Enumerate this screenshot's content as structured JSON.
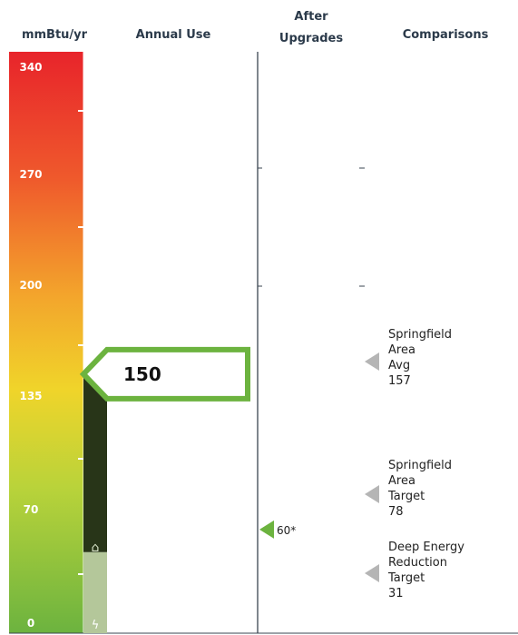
{
  "chart_data": {
    "type": "bar",
    "units": "mmBtu/yr",
    "headers": {
      "scale": "mmBtu/yr",
      "annual_use": "Annual Use",
      "after_upgrades_line1": "After",
      "after_upgrades_line2": "Upgrades",
      "comparisons": "Comparisons"
    },
    "ylim": [
      0,
      340
    ],
    "tick_labels": [
      "340",
      "270",
      "200",
      "135",
      "70",
      "0"
    ],
    "tick_values": [
      340,
      270,
      200,
      135,
      70,
      0
    ],
    "annual_use": {
      "value": 150,
      "label": "150",
      "color": "#6cb33f",
      "bar_color": "#283518"
    },
    "reduction_segment": {
      "value": 46,
      "color": "#b4c79a"
    },
    "after_upgrades": {
      "value": 60,
      "label": "60*",
      "color": "#6cb33f"
    },
    "comparisons": [
      {
        "lines": [
          "Springfield",
          "Area",
          "Avg",
          "157"
        ],
        "value": 157
      },
      {
        "lines": [
          "Springfield",
          "Area",
          "Target",
          "78"
        ],
        "value": 78
      },
      {
        "lines": [
          "Deep Energy",
          "Reduction",
          "Target",
          "31"
        ],
        "value": 31
      }
    ],
    "scale_gradient": [
      "#e8242b",
      "#f07b2e",
      "#f3c52a",
      "#b9d33a",
      "#6cb33f"
    ],
    "comparison_marker_color": "#b5b5b5",
    "grid": false
  }
}
